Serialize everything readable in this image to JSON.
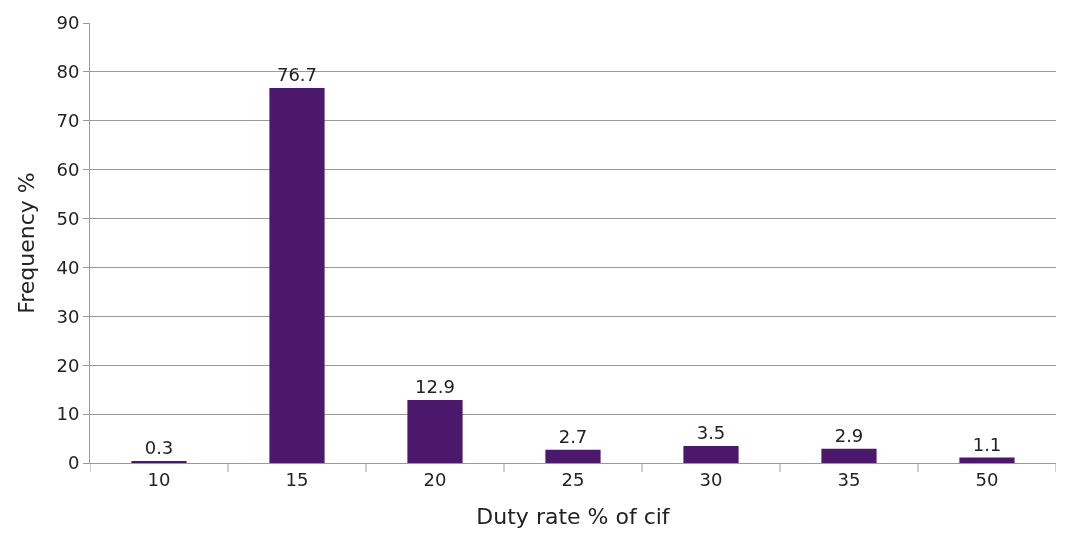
{
  "chart_data": {
    "type": "bar",
    "xlabel": "Duty rate % of cif",
    "ylabel": "Frequency %",
    "categories": [
      "10",
      "15",
      "20",
      "25",
      "30",
      "35",
      "50"
    ],
    "values": [
      0.3,
      76.7,
      12.9,
      2.7,
      3.5,
      2.9,
      1.1
    ],
    "color": "#4b186b",
    "ylim": [
      0,
      90
    ],
    "yticks": [
      0,
      10,
      20,
      30,
      40,
      50,
      60,
      70,
      80,
      90
    ],
    "grid": "y",
    "data_labels": true
  }
}
